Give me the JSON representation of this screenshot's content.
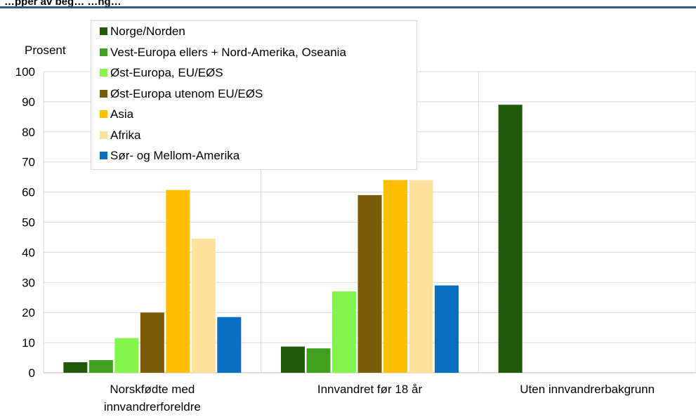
{
  "chart_data": {
    "type": "bar",
    "title": "…pper av beg… …ng…",
    "ylabel": "Prosent",
    "xlabel": "",
    "ylim": [
      0,
      100
    ],
    "yticks": [
      0,
      10,
      20,
      30,
      40,
      50,
      60,
      70,
      80,
      90,
      100
    ],
    "grid": true,
    "legend_position": "top-left",
    "categories": [
      "Norskfødte med\ninnvandrerforeldre",
      "Innvandret før 18 år",
      "Uten innvandrerbakgrunn"
    ],
    "series": [
      {
        "name": "Norge/Norden",
        "color": "#215a0a",
        "values": [
          3.5,
          8.7,
          89
        ]
      },
      {
        "name": "Vest-Europa ellers + Nord-Amerika, Oseania",
        "color": "#3ea01e",
        "values": [
          4.2,
          8.1,
          null
        ]
      },
      {
        "name": "Øst-Europa, EU/EØS",
        "color": "#84f54a",
        "values": [
          11.5,
          27,
          null
        ]
      },
      {
        "name": "Øst-Europa utenom EU/EØS",
        "color": "#7b5c0b",
        "values": [
          20,
          59,
          null
        ]
      },
      {
        "name": "Asia",
        "color": "#ffbe00",
        "values": [
          60.7,
          64,
          null
        ]
      },
      {
        "name": "Afrika",
        "color": "#fce29d",
        "values": [
          44.5,
          64,
          null
        ]
      },
      {
        "name": "Sør- og Mellom-Amerika",
        "color": "#0b6fc1",
        "values": [
          18.5,
          29,
          null
        ]
      }
    ]
  }
}
